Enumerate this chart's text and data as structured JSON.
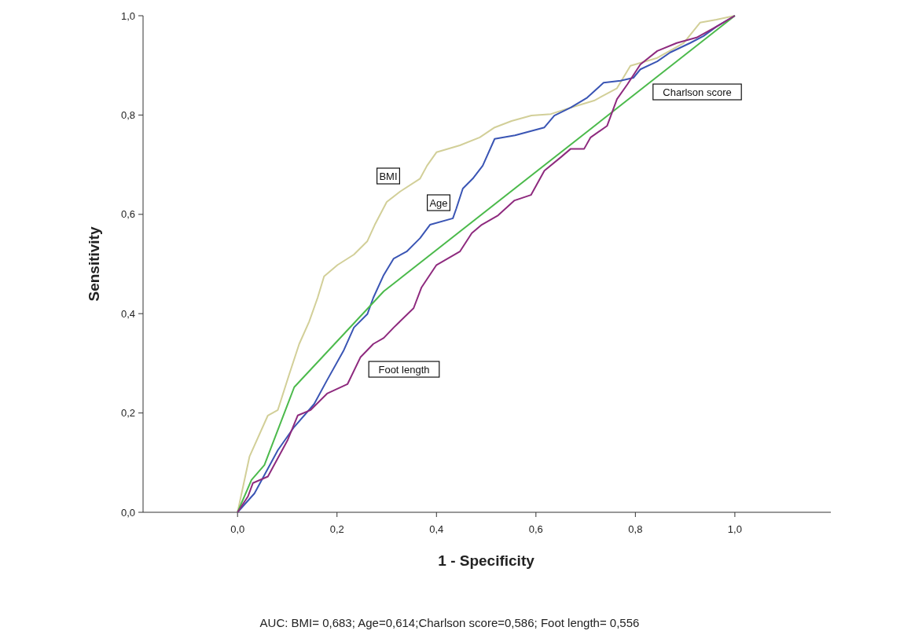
{
  "chart_data": {
    "type": "line",
    "xlabel": "1 - Specificity",
    "ylabel": "Sensitivity",
    "annotations": [
      "AUC: BMI= 0,683; Age=0,614;Charlson score=0,586; Foot length= 0,556"
    ],
    "xlim": [
      -0.19,
      1.193
    ],
    "ylim": [
      0,
      1
    ],
    "xticks": [
      {
        "value": 0,
        "label": "0,0"
      },
      {
        "value": 0.2,
        "label": "0,2"
      },
      {
        "value": 0.4,
        "label": "0,4"
      },
      {
        "value": 0.6,
        "label": "0,6"
      },
      {
        "value": 0.8,
        "label": "0,8"
      },
      {
        "value": 1,
        "label": "1,0"
      }
    ],
    "yticks": [
      {
        "value": 0,
        "label": "0,0"
      },
      {
        "value": 0.2,
        "label": "0,2"
      },
      {
        "value": 0.4,
        "label": "0,4"
      },
      {
        "value": 0.6,
        "label": "0,6"
      },
      {
        "value": 0.8,
        "label": "0,8"
      },
      {
        "value": 1,
        "label": "1,0"
      }
    ],
    "series": [
      {
        "name": "BMI",
        "color": "#d2cf98",
        "x": [
          0,
          0.024,
          0.061,
          0.081,
          0.104,
          0.124,
          0.144,
          0.161,
          0.174,
          0.201,
          0.234,
          0.261,
          0.276,
          0.3,
          0.327,
          0.367,
          0.381,
          0.4,
          0.447,
          0.487,
          0.517,
          0.551,
          0.591,
          0.63,
          0.67,
          0.717,
          0.763,
          0.79,
          0.844,
          0.897,
          0.93,
          0.963,
          1
        ],
        "values": [
          0,
          0.112,
          0.195,
          0.206,
          0.278,
          0.339,
          0.384,
          0.432,
          0.475,
          0.498,
          0.519,
          0.546,
          0.579,
          0.625,
          0.646,
          0.672,
          0.698,
          0.725,
          0.739,
          0.755,
          0.775,
          0.788,
          0.799,
          0.802,
          0.815,
          0.829,
          0.854,
          0.899,
          0.915,
          0.945,
          0.986,
          0.992,
          1
        ]
      },
      {
        "name": "Age",
        "color": "#3a55b4",
        "x": [
          0,
          0.034,
          0.081,
          0.114,
          0.154,
          0.18,
          0.213,
          0.234,
          0.261,
          0.273,
          0.294,
          0.314,
          0.34,
          0.367,
          0.387,
          0.433,
          0.44,
          0.453,
          0.473,
          0.493,
          0.517,
          0.558,
          0.617,
          0.637,
          0.67,
          0.703,
          0.736,
          0.77,
          0.796,
          0.81,
          0.844,
          0.87,
          0.91,
          0.937,
          0.963,
          1
        ],
        "values": [
          0,
          0.038,
          0.125,
          0.172,
          0.218,
          0.266,
          0.325,
          0.372,
          0.399,
          0.432,
          0.478,
          0.511,
          0.525,
          0.552,
          0.579,
          0.592,
          0.612,
          0.652,
          0.672,
          0.698,
          0.752,
          0.759,
          0.775,
          0.799,
          0.815,
          0.835,
          0.865,
          0.869,
          0.875,
          0.892,
          0.908,
          0.926,
          0.945,
          0.959,
          0.978,
          1
        ]
      },
      {
        "name": "Charlson score",
        "color": "#4cba4c",
        "x": [
          0,
          0.028,
          0.054,
          0.114,
          0.294,
          1
        ],
        "values": [
          0,
          0.065,
          0.095,
          0.252,
          0.445,
          1
        ]
      },
      {
        "name": "Foot length",
        "color": "#8e2a7e",
        "x": [
          0,
          0.021,
          0.031,
          0.061,
          0.101,
          0.121,
          0.147,
          0.18,
          0.221,
          0.247,
          0.273,
          0.294,
          0.314,
          0.354,
          0.37,
          0.4,
          0.447,
          0.471,
          0.491,
          0.524,
          0.557,
          0.59,
          0.617,
          0.65,
          0.67,
          0.697,
          0.71,
          0.743,
          0.763,
          0.784,
          0.81,
          0.844,
          0.883,
          0.923,
          0.963,
          1
        ],
        "values": [
          0,
          0.032,
          0.059,
          0.072,
          0.146,
          0.195,
          0.206,
          0.239,
          0.258,
          0.312,
          0.339,
          0.351,
          0.372,
          0.411,
          0.453,
          0.498,
          0.525,
          0.562,
          0.579,
          0.598,
          0.628,
          0.639,
          0.688,
          0.715,
          0.732,
          0.732,
          0.755,
          0.778,
          0.832,
          0.862,
          0.902,
          0.929,
          0.945,
          0.956,
          0.978,
          1
        ]
      }
    ]
  }
}
